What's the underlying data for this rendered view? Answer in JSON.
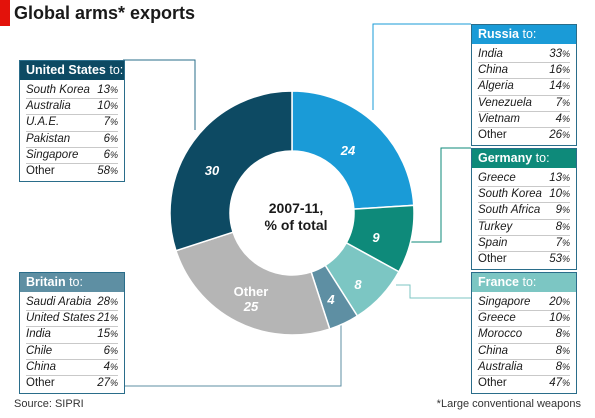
{
  "title": "Global arms* exports",
  "source": "Source: SIPRI",
  "footnote": "*Large conventional weapons",
  "colors": {
    "us": "#0d4a63",
    "russia": "#1a9bd7",
    "germany": "#0e8a7a",
    "france": "#7cc6c3",
    "britain": "#5e8fa3",
    "other": "#b5b5b5",
    "red": "#e3120b"
  },
  "chart_data": {
    "type": "pie",
    "title": "Global arms* exports",
    "center_label_line1": "2007-11,",
    "center_label_line2": "% of total",
    "slices": [
      {
        "name": "Russia",
        "value": 24,
        "label": "24",
        "color": "#1a9bd7"
      },
      {
        "name": "Germany",
        "value": 9,
        "label": "9",
        "color": "#0e8a7a"
      },
      {
        "name": "France",
        "value": 8,
        "label": "8",
        "color": "#7cc6c3"
      },
      {
        "name": "Britain",
        "value": 4,
        "label": "4",
        "color": "#5e8fa3"
      },
      {
        "name": "Other",
        "value": 25,
        "label": "25",
        "label_top": "Other",
        "color": "#b5b5b5"
      },
      {
        "name": "United States",
        "value": 30,
        "label": "30",
        "color": "#0d4a63"
      }
    ]
  },
  "boxes": {
    "us": {
      "name": "United States",
      "suffix": " to:",
      "rows": [
        {
          "country": "South Korea",
          "value": "13"
        },
        {
          "country": "Australia",
          "value": "10"
        },
        {
          "country": "U.A.E.",
          "value": "7"
        },
        {
          "country": "Pakistan",
          "value": "6"
        },
        {
          "country": "Singapore",
          "value": "6"
        },
        {
          "country": "Other",
          "value": "58"
        }
      ]
    },
    "russia": {
      "name": "Russia",
      "suffix": " to:",
      "rows": [
        {
          "country": "India",
          "value": "33"
        },
        {
          "country": "China",
          "value": "16"
        },
        {
          "country": "Algeria",
          "value": "14"
        },
        {
          "country": "Venezuela",
          "value": "7"
        },
        {
          "country": "Vietnam",
          "value": "4"
        },
        {
          "country": "Other",
          "value": "26"
        }
      ]
    },
    "germany": {
      "name": "Germany",
      "suffix": " to:",
      "rows": [
        {
          "country": "Greece",
          "value": "13"
        },
        {
          "country": "South Korea",
          "value": "10"
        },
        {
          "country": "South Africa",
          "value": "9"
        },
        {
          "country": "Turkey",
          "value": "8"
        },
        {
          "country": "Spain",
          "value": "7"
        },
        {
          "country": "Other",
          "value": "53"
        }
      ]
    },
    "britain": {
      "name": "Britain",
      "suffix": " to:",
      "rows": [
        {
          "country": "Saudi Arabia",
          "value": "28"
        },
        {
          "country": "United States",
          "value": "21"
        },
        {
          "country": "India",
          "value": "15"
        },
        {
          "country": "Chile",
          "value": "6"
        },
        {
          "country": "China",
          "value": "4"
        },
        {
          "country": "Other",
          "value": "27"
        }
      ]
    },
    "france": {
      "name": "France",
      "suffix": " to:",
      "rows": [
        {
          "country": "Singapore",
          "value": "20"
        },
        {
          "country": "Greece",
          "value": "10"
        },
        {
          "country": "Morocco",
          "value": "8"
        },
        {
          "country": "China",
          "value": "8"
        },
        {
          "country": "Australia",
          "value": "8"
        },
        {
          "country": "Other",
          "value": "47"
        }
      ]
    }
  }
}
